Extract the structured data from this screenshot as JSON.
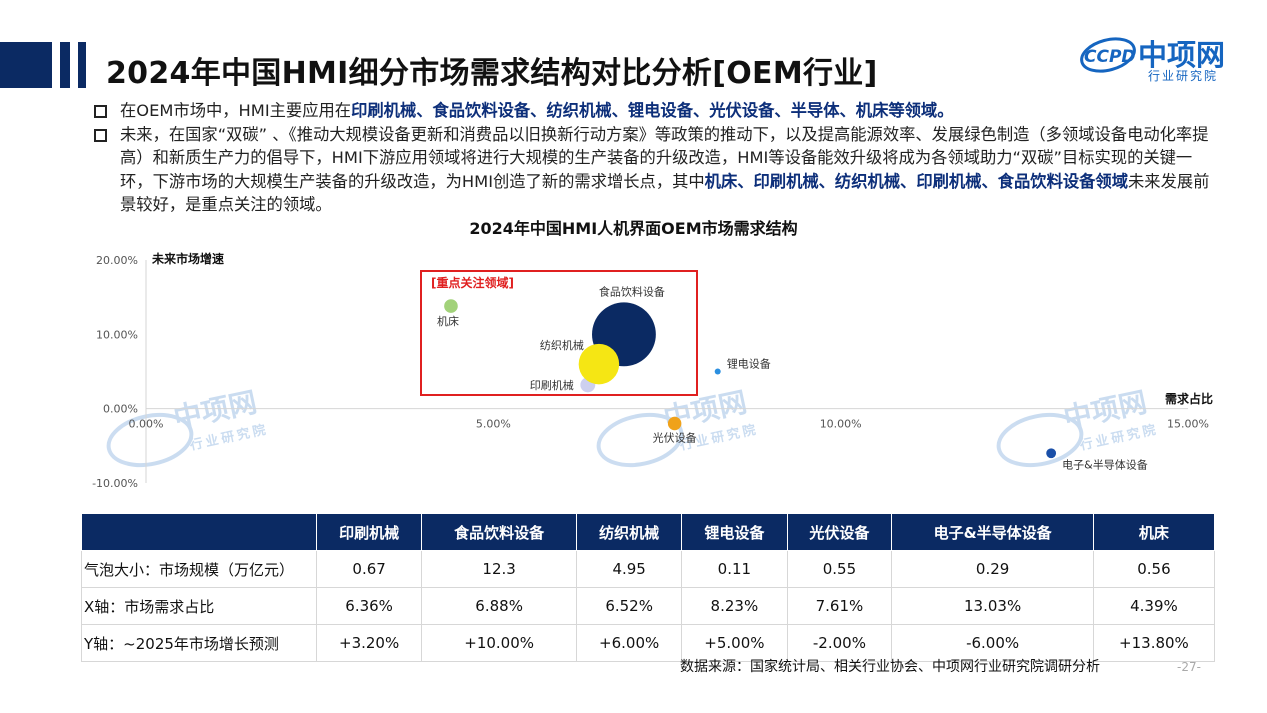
{
  "title": "2024年中国HMI细分市场需求结构对比分析[OEM行业]",
  "logo": {
    "name": "中项网",
    "subtitle": "行业研究院",
    "mark": "CCPD"
  },
  "bullets": [
    {
      "plain1": "在OEM市场中，HMI主要应用在",
      "bold1": "印刷机械、食品饮料设备、纺织机械、锂电设备、光伏设备、半导体、机床等领域。",
      "plain2": "",
      "bold2": "",
      "plain3": ""
    },
    {
      "plain1": "未来，在国家“双碳” 、《推动大规模设备更新和消费品以旧换新行动方案》等政策的推动下，以及提高能源效率、发展绿色制造（多领域设备电动化率提高）和新质生产力的倡导下，HMI下游应用领域将进行大规模的生产装备的升级改造，HMI等设备能效升级将成为各领域助力“双碳”目标实现的关键一环，下游市场的大规模生产装备的升级改造，为HMI创造了新的需求增长点，其中",
      "bold1": "机床、印刷机械、纺织机械、印刷机械、食品饮料设备领域",
      "plain2": "未来发展前景较好，是重点关注的领域。",
      "bold2": "",
      "plain3": ""
    }
  ],
  "watermark": {
    "name": "中项网",
    "sub": "行业研究院"
  },
  "chart_data": {
    "type": "bubble",
    "title": "2024年中国HMI人机界面OEM市场需求结构",
    "xlabel": "需求占比",
    "ylabel": "未来市场增速",
    "xlim": [
      0,
      0.15
    ],
    "ylim": [
      -0.1,
      0.2
    ],
    "xticks": [
      "0.00%",
      "5.00%",
      "10.00%",
      "15.00%"
    ],
    "yticks": [
      "20.00%",
      "10.00%",
      "0.00%",
      "-10.00%"
    ],
    "points": [
      {
        "name": "印刷机械",
        "x": 0.0636,
        "y": 0.032,
        "size": 0.67,
        "color": "#cdd0ef"
      },
      {
        "name": "食品饮料设备",
        "x": 0.0688,
        "y": 0.1,
        "size": 12.3,
        "color": "#0b2a63"
      },
      {
        "name": "纺织机械",
        "x": 0.0652,
        "y": 0.06,
        "size": 4.95,
        "color": "#f5e614"
      },
      {
        "name": "锂电设备",
        "x": 0.0823,
        "y": 0.05,
        "size": 0.11,
        "color": "#2b8fe0"
      },
      {
        "name": "光伏设备",
        "x": 0.0761,
        "y": -0.02,
        "size": 0.55,
        "color": "#f0a21a"
      },
      {
        "name": "电子&半导体设备",
        "x": 0.1303,
        "y": -0.06,
        "size": 0.29,
        "color": "#1a4fa8"
      },
      {
        "name": "机床",
        "x": 0.0439,
        "y": 0.138,
        "size": 0.56,
        "color": "#a2d27a"
      }
    ],
    "annotation": "[重点关注领域]"
  },
  "table": {
    "headers": [
      "",
      "印刷机械",
      "食品饮料设备",
      "纺织机械",
      "锂电设备",
      "光伏设备",
      "电子&半导体设备",
      "机床"
    ],
    "rows": [
      {
        "label": "气泡大小：市场规模（万亿元）",
        "cells": [
          "0.67",
          "12.3",
          "4.95",
          "0.11",
          "0.55",
          "0.29",
          "0.56"
        ]
      },
      {
        "label": "X轴：市场需求占比",
        "cells": [
          "6.36%",
          "6.88%",
          "6.52%",
          "8.23%",
          "7.61%",
          "13.03%",
          "4.39%"
        ]
      },
      {
        "label": "Y轴：~2025年市场增长预测",
        "cells": [
          "+3.20%",
          "+10.00%",
          "+6.00%",
          "+5.00%",
          "-2.00%",
          "-6.00%",
          "+13.80%"
        ]
      }
    ]
  },
  "source": "数据来源：国家统计局、相关行业协会、中项网行业研究院调研分析",
  "page_number": "-27-"
}
